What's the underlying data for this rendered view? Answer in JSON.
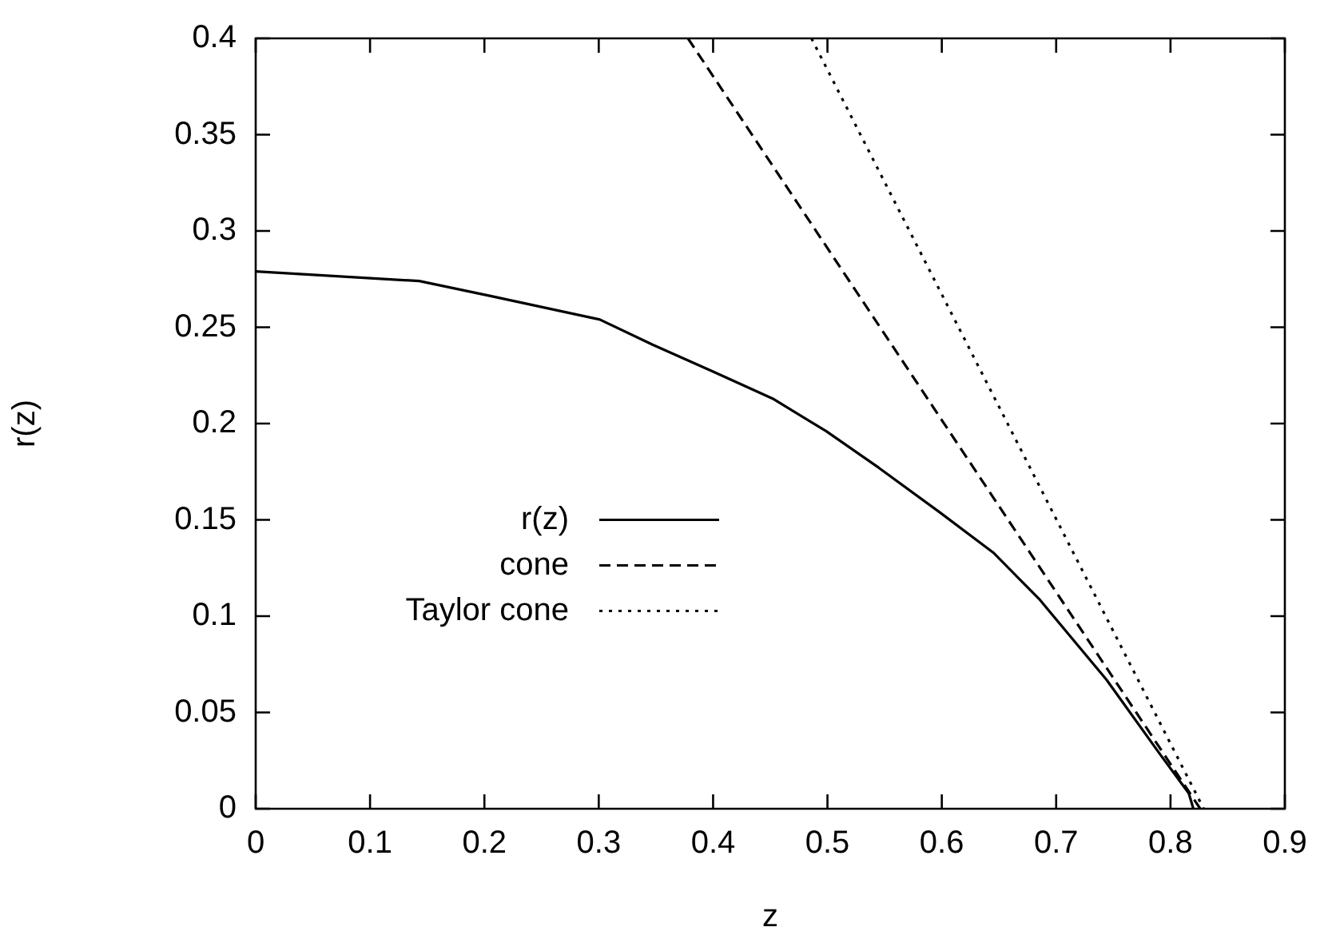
{
  "chart_data": {
    "type": "line",
    "xlabel": "z",
    "ylabel": "r(z)",
    "xlim": [
      0,
      0.9
    ],
    "ylim": [
      0,
      0.4
    ],
    "xticks": [
      0,
      0.1,
      0.2,
      0.3,
      0.4,
      0.5,
      0.6,
      0.7,
      0.8,
      0.9
    ],
    "yticks": [
      0,
      0.05,
      0.1,
      0.15,
      0.2,
      0.25,
      0.3,
      0.35,
      0.4
    ],
    "grid": false,
    "legend": "left",
    "marker": "none",
    "series": [
      {
        "name": "r(z)",
        "color": "#000000",
        "line_style": "solid",
        "x": [
          0,
          0.143,
          0.207,
          0.301,
          0.347,
          0.4,
          0.452,
          0.499,
          0.545,
          0.598,
          0.645,
          0.685,
          0.744,
          0.79,
          0.816,
          0.82
        ],
        "values": [
          0.279,
          0.274,
          0.266,
          0.254,
          0.241,
          0.227,
          0.213,
          0.196,
          0.177,
          0.154,
          0.133,
          0.109,
          0.067,
          0.029,
          0.008,
          0
        ]
      },
      {
        "name": "cone",
        "color": "#000000",
        "line_style": "dashed",
        "x": [
          0.378,
          0.826
        ],
        "values": [
          0.4,
          0
        ]
      },
      {
        "name": "Taylor cone",
        "color": "#000000",
        "line_style": "dotted",
        "x": [
          0.486,
          0.829
        ],
        "values": [
          0.4,
          0
        ]
      }
    ]
  }
}
